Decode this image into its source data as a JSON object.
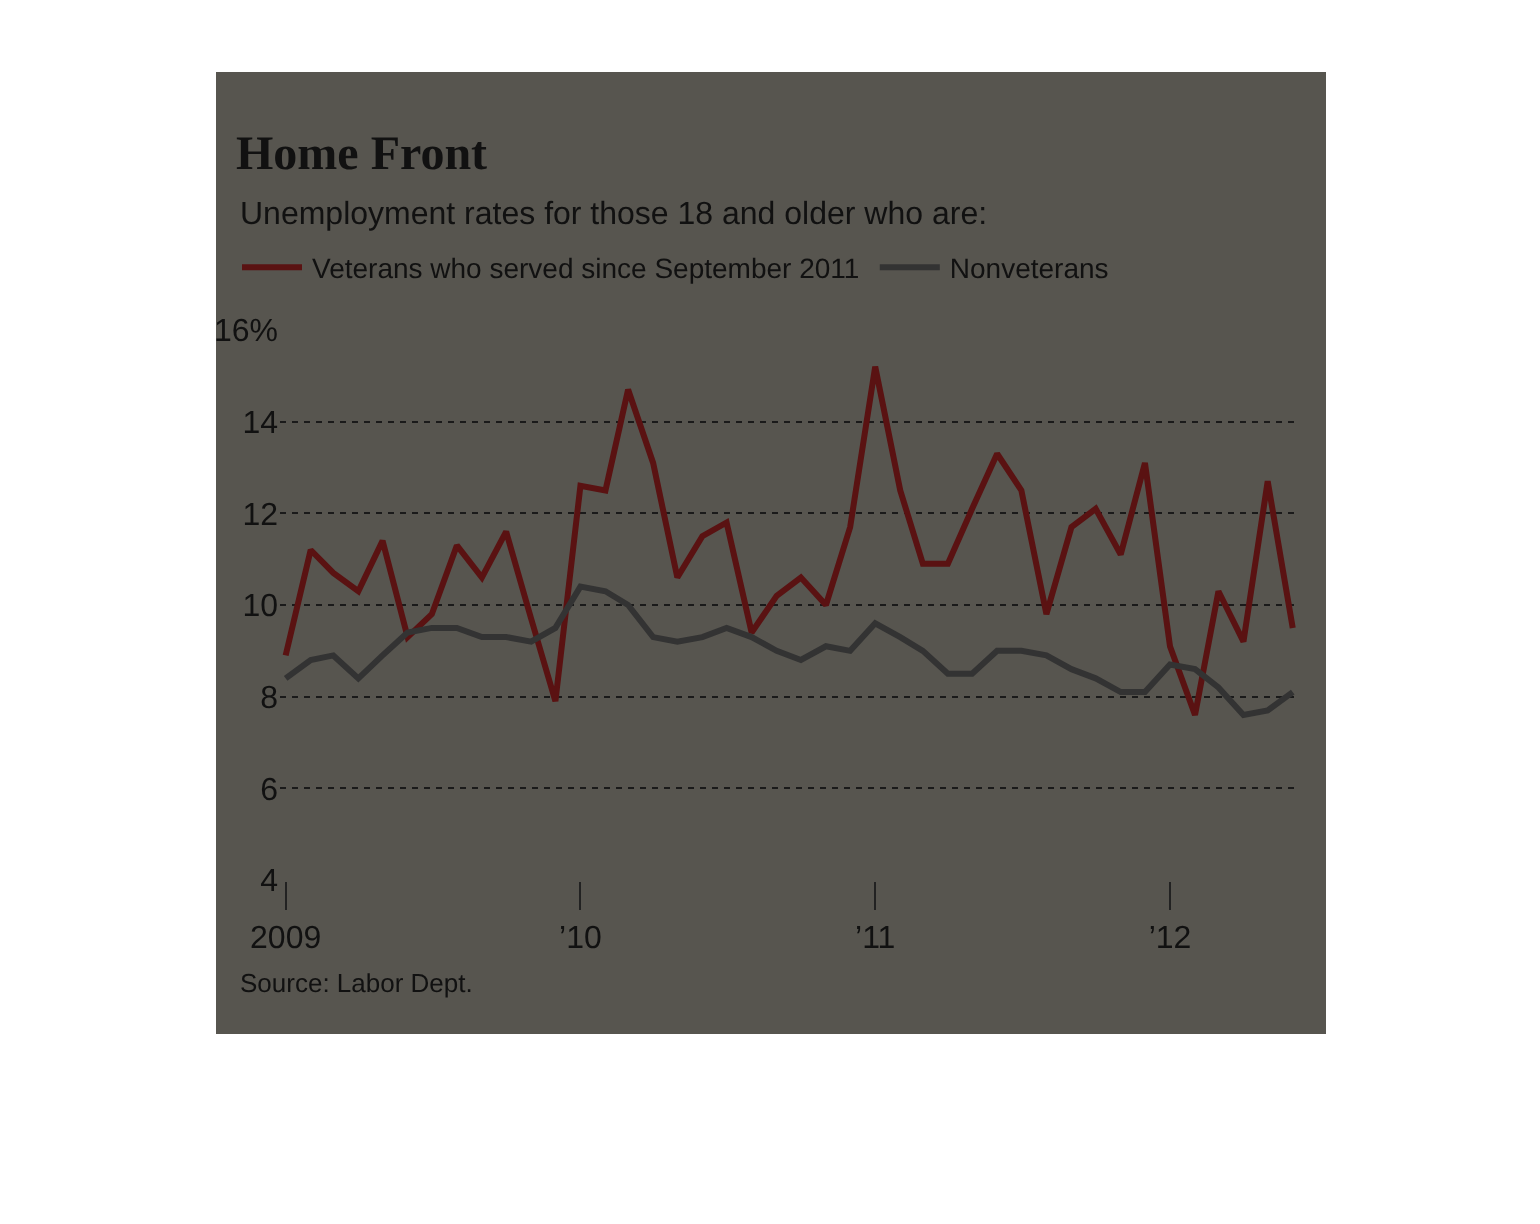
{
  "chart_data": {
    "type": "line",
    "title": "Home Front",
    "subtitle": "Unemployment rates for those 18 and older who are:",
    "x": [
      "2009-01",
      "2009-02",
      "2009-03",
      "2009-04",
      "2009-05",
      "2009-06",
      "2009-07",
      "2009-08",
      "2009-09",
      "2009-10",
      "2009-11",
      "2009-12",
      "2010-01",
      "2010-02",
      "2010-03",
      "2010-04",
      "2010-05",
      "2010-06",
      "2010-07",
      "2010-08",
      "2010-09",
      "2010-10",
      "2010-11",
      "2010-12",
      "2011-01",
      "2011-02",
      "2011-03",
      "2011-04",
      "2011-05",
      "2011-06",
      "2011-07",
      "2011-08",
      "2011-09",
      "2011-10",
      "2011-11",
      "2011-12",
      "2012-01",
      "2012-02",
      "2012-03",
      "2012-04",
      "2012-05",
      "2012-06"
    ],
    "series": [
      {
        "name": "Veterans who served since September 2011",
        "color": "#5a1212",
        "values": [
          8.9,
          11.2,
          10.7,
          10.3,
          11.4,
          9.3,
          9.8,
          11.3,
          10.6,
          11.6,
          9.7,
          7.9,
          12.6,
          12.5,
          14.7,
          13.1,
          10.6,
          11.5,
          11.8,
          9.4,
          10.2,
          10.6,
          10.0,
          11.7,
          15.2,
          12.5,
          10.9,
          10.9,
          12.1,
          13.3,
          12.5,
          9.8,
          11.7,
          12.1,
          11.1,
          13.1,
          9.1,
          7.6,
          10.3,
          9.2,
          12.7,
          9.5
        ]
      },
      {
        "name": "Nonveterans",
        "color": "#333333",
        "values": [
          8.4,
          8.8,
          8.9,
          8.4,
          8.9,
          9.4,
          9.5,
          9.5,
          9.3,
          9.3,
          9.2,
          9.5,
          10.4,
          10.3,
          10.0,
          9.3,
          9.2,
          9.3,
          9.5,
          9.3,
          9.0,
          8.8,
          9.1,
          9.0,
          9.6,
          9.3,
          9.0,
          8.5,
          8.5,
          9.0,
          9.0,
          8.9,
          8.6,
          8.4,
          8.1,
          8.1,
          8.7,
          8.6,
          8.2,
          7.6,
          7.7,
          8.1
        ]
      }
    ],
    "xlim": [
      "2008-12-25",
      "2012-06-10"
    ],
    "xticks": [
      {
        "value": "2009-01",
        "label": "2009"
      },
      {
        "value": "2010-01",
        "label": "’10"
      },
      {
        "value": "2011-01",
        "label": "’11"
      },
      {
        "value": "2012-01",
        "label": "’12"
      }
    ],
    "ylim": [
      4,
      16
    ],
    "yticks": [
      4,
      6,
      8,
      10,
      12,
      14,
      {
        "value": 16,
        "label": "16%"
      }
    ],
    "grid": "y",
    "legend": "top left",
    "marker": "none",
    "line_style": "solid",
    "annotations": [
      "Source: Labor Dept."
    ]
  }
}
